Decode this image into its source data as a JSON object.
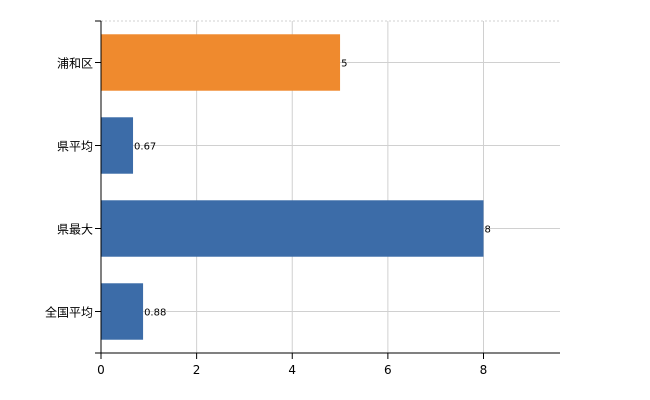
{
  "chart_data": {
    "type": "bar",
    "orientation": "horizontal",
    "categories": [
      "浦和区",
      "県平均",
      "県最大",
      "全国平均"
    ],
    "values": [
      5,
      0.67,
      8,
      0.88
    ],
    "value_labels": [
      "5",
      "0.67",
      "8",
      "0.88"
    ],
    "bar_colors": [
      "#ef8a2e",
      "#3c6ca8",
      "#3c6ca8",
      "#3c6ca8"
    ],
    "xlim": [
      0,
      9.6
    ],
    "xticks": [
      0,
      2,
      4,
      6,
      8
    ],
    "xtick_labels": [
      "0",
      "2",
      "4",
      "6",
      "8"
    ],
    "grid": true,
    "title": "",
    "xlabel": "",
    "ylabel": ""
  }
}
